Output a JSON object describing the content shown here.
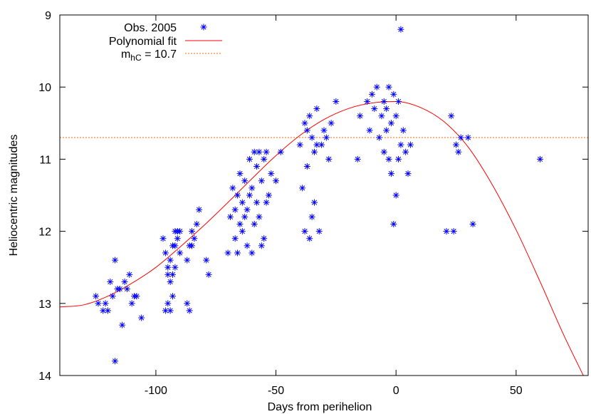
{
  "chart_data": {
    "type": "scatter",
    "title": "",
    "xlabel": "Days from perihelion",
    "ylabel": "Heliocentric magnitudes",
    "xlim": [
      -140,
      80
    ],
    "ylim": [
      14,
      9
    ],
    "y_inverted": true,
    "grid": false,
    "legend_position": "top-left",
    "xticks": [
      -100,
      -50,
      0,
      50
    ],
    "xtick_labels": [
      "-100",
      "-50",
      "0",
      "50"
    ],
    "yticks": [
      9,
      10,
      11,
      12,
      13,
      14
    ],
    "ytick_labels": [
      "9",
      "10",
      "11",
      "12",
      "13",
      "14"
    ],
    "colors": {
      "obs": "#0000ff",
      "fit": "#ff0000",
      "hline": "#ff6a00"
    },
    "legend": {
      "obs": "Obs. 2005",
      "fit": "Polynomial fit",
      "hline_base": "m",
      "hline_sub": "hC",
      "hline_rest": " = 10.7"
    },
    "series": [
      {
        "name": "Obs. 2005",
        "kind": "scatter",
        "marker": "asterisk",
        "x": [
          -125,
          -124,
          -122,
          -121,
          -120,
          -119,
          -118,
          -117,
          -117,
          -116,
          -115,
          -114,
          -113,
          -112,
          -111,
          -110,
          -109,
          -108,
          -106,
          -97,
          -96,
          -96,
          -95,
          -95,
          -95,
          -94,
          -94,
          -94,
          -93,
          -93,
          -93,
          -92,
          -92,
          -92,
          -91,
          -91,
          -90,
          -90,
          -87,
          -87,
          -86,
          -86,
          -85,
          -85,
          -84,
          -83,
          -82,
          -79,
          -78,
          -70,
          -69,
          -68,
          -67,
          -67,
          -66,
          -66,
          -65,
          -65,
          -64,
          -64,
          -63,
          -63,
          -62,
          -62,
          -61,
          -61,
          -60,
          -60,
          -59,
          -59,
          -58,
          -58,
          -57,
          -57,
          -56,
          -56,
          -55,
          -55,
          -54,
          -54,
          -53,
          -52,
          -50,
          -48,
          -40,
          -39,
          -38,
          -38,
          -37,
          -37,
          -36,
          -36,
          -35,
          -35,
          -34,
          -34,
          -33,
          -33,
          -32,
          -31,
          -30,
          -29,
          -28,
          -27,
          -25,
          -16,
          -15,
          -12,
          -11,
          -10,
          -9,
          -8,
          -7,
          -6,
          -5,
          -5,
          -4,
          -4,
          -3,
          -3,
          -2,
          -2,
          -1,
          -1,
          0,
          0,
          1,
          1,
          2,
          2,
          3,
          4,
          5,
          6,
          21,
          23,
          24,
          25,
          26,
          27,
          30,
          32,
          60
        ],
        "y": [
          12.9,
          13.0,
          13.1,
          13.0,
          13.1,
          12.7,
          12.9,
          12.4,
          13.8,
          12.8,
          12.8,
          13.3,
          12.7,
          12.8,
          12.6,
          13.0,
          12.9,
          12.9,
          13.2,
          12.1,
          12.3,
          13.1,
          12.5,
          12.6,
          13.0,
          12.7,
          12.4,
          13.1,
          12.2,
          12.6,
          12.9,
          12.0,
          12.5,
          12.2,
          12.1,
          12.0,
          12.3,
          12.0,
          12.4,
          13.0,
          12.2,
          13.1,
          12.0,
          12.2,
          12.1,
          11.9,
          11.7,
          12.4,
          12.6,
          12.3,
          11.8,
          11.4,
          11.7,
          12.1,
          12.3,
          11.5,
          11.2,
          11.9,
          11.6,
          12.0,
          11.3,
          11.8,
          11.7,
          12.2,
          11.0,
          11.5,
          11.4,
          12.3,
          10.9,
          11.9,
          11.1,
          11.6,
          10.9,
          11.8,
          11.3,
          12.2,
          11.0,
          12.1,
          11.6,
          10.9,
          11.5,
          11.2,
          11.3,
          10.9,
          10.8,
          11.4,
          10.5,
          12.0,
          10.6,
          11.1,
          10.4,
          12.1,
          10.7,
          11.8,
          10.9,
          11.6,
          10.3,
          10.8,
          12.0,
          10.8,
          10.6,
          10.7,
          11.0,
          10.5,
          10.2,
          11.0,
          10.4,
          10.2,
          10.6,
          10.1,
          10.3,
          10.0,
          10.7,
          10.4,
          10.2,
          10.9,
          10.3,
          10.6,
          10.0,
          11.0,
          10.5,
          11.2,
          10.1,
          11.9,
          10.4,
          11.5,
          10.2,
          11.0,
          9.2,
          10.8,
          10.6,
          10.9,
          11.2,
          10.8,
          12.0,
          10.4,
          12.0,
          10.8,
          10.9,
          10.7,
          10.7,
          11.9,
          11.0
        ]
      },
      {
        "name": "Polynomial fit",
        "kind": "line",
        "x": [
          -140,
          -130,
          -120,
          -110,
          -100,
          -90,
          -80,
          -70,
          -60,
          -50,
          -40,
          -30,
          -20,
          -10,
          0,
          10,
          20,
          30,
          40,
          50,
          60,
          70,
          78
        ],
        "y": [
          13.05,
          13.02,
          12.9,
          12.72,
          12.5,
          12.22,
          11.92,
          11.6,
          11.27,
          10.95,
          10.67,
          10.45,
          10.3,
          10.22,
          10.2,
          10.28,
          10.48,
          10.83,
          11.35,
          11.98,
          12.7,
          13.45,
          14.0
        ]
      },
      {
        "name": "mhC = 10.7",
        "kind": "hline",
        "value": 10.7
      }
    ]
  }
}
